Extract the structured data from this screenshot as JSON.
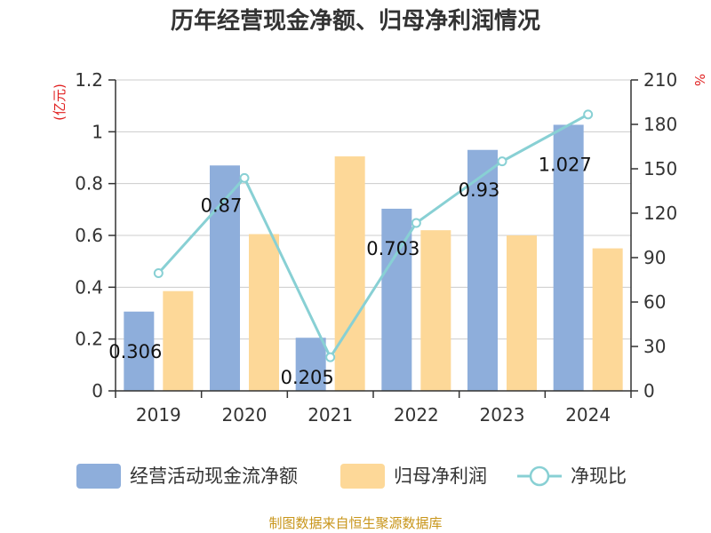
{
  "chart_data": {
    "type": "bar",
    "title": "历年经营现金净额、归母净利润情况",
    "left_unit": "(亿元)",
    "right_unit": "%",
    "categories": [
      "2019",
      "2020",
      "2021",
      "2022",
      "2023",
      "2024"
    ],
    "series": [
      {
        "name": "经营活动现金流净额",
        "type": "bar",
        "axis": "left",
        "color": "#8eaedb",
        "values": [
          0.306,
          0.87,
          0.205,
          0.703,
          0.93,
          1.027
        ],
        "labels": [
          "0.306",
          "0.87",
          "0.205",
          "0.703",
          "0.93",
          "1.027"
        ]
      },
      {
        "name": "归母净利润",
        "type": "bar",
        "axis": "left",
        "color": "#fdd898",
        "values": [
          0.385,
          0.605,
          0.905,
          0.62,
          0.6,
          0.55
        ]
      },
      {
        "name": "净现比",
        "type": "line",
        "axis": "right",
        "color": "#88d0d4",
        "values": [
          79.5,
          143.8,
          22.7,
          113.4,
          155.0,
          186.7
        ]
      }
    ],
    "y_left": {
      "min": 0,
      "max": 1.2,
      "ticks": [
        "0",
        "0.2",
        "0.4",
        "0.6",
        "0.8",
        "1",
        "1.2"
      ]
    },
    "y_right": {
      "min": 0,
      "max": 210,
      "ticks": [
        "0",
        "30",
        "60",
        "90",
        "120",
        "150",
        "180",
        "210"
      ]
    },
    "grid": true,
    "legend_position": "bottom"
  },
  "source": "制图数据来自恒生聚源数据库"
}
